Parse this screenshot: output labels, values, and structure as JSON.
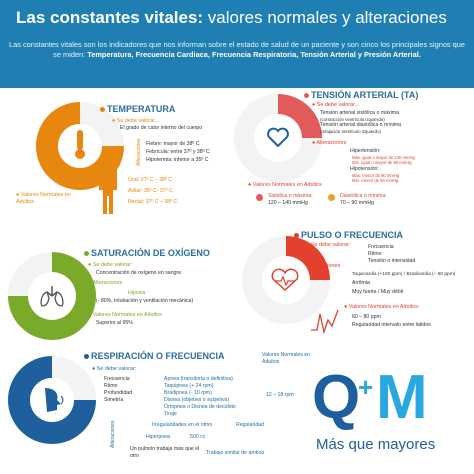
{
  "header": {
    "title_bold": "Las constantes vitales:",
    "title_rest": " valores normales y alteraciones",
    "intro": "Las constantes vitales son los indicadores que nos informan sobre el estado de salud de un paciente y son cinco los principales signos que se miden:",
    "intro_signs": "Temperatura, Frecuencia Cardiaca, Frecuencia Respiratoria, Tensión Arterial y Presión Arterial."
  },
  "temperatura": {
    "title": "TEMPERATURA",
    "valorar": "Se debe valorar...",
    "valorar_desc": "El grado de calor interno del cuerpo",
    "alteraciones_label": "Alteraciones",
    "alteraciones": [
      "Fiebre: mayor de 38º C",
      "Febrícula: entre 37º y 38º C",
      "Hipotermia: inferior a 35º C"
    ],
    "normales_label": "Valores Normales en Adultos",
    "normales": [
      "Oral: 37º C – 38º C",
      "Axilar: 36º C- 37º C",
      "Rectal: 37º C – 38º C"
    ]
  },
  "tension": {
    "title": "TENSIÓN ARTERIAL (TA)",
    "valorar": "Se debe valorar...",
    "items": [
      "Tensión arterial sistólica o máxima",
      "(contracción ventrículo izquierdo)",
      "Tensión arterial diastólica o mínima",
      "(relajación ventrículo izquierdo)"
    ],
    "alteraciones_label": "Alteraciones",
    "hiper": "Hipertensión:",
    "hiper_a": "Máx. igual o mayor de 140 mmHg",
    "hiper_b": "Mín. igual o mayor de 90 mmHg",
    "hipo": "Hipotensión:",
    "hipo_a": "Máx. menor de 90 mmHg",
    "hipo_b": "Mín. menor de 60 mmHg",
    "normales_label": "Valores Normales en Adultos",
    "sist_label": "Sistólica o máxima:",
    "sist_val": "120 – 140 mmHg",
    "diast_label": "Diastólica o mínima:",
    "diast_val": "70 – 90 mmHg"
  },
  "saturacion": {
    "title": "SATURACIÓN DE OXÍGENO",
    "valorar": "Se debe valorar:",
    "valorar_desc": "Concentración de oxígeno en sangre",
    "alteraciones_label": "Alteraciones",
    "hipoxia": "Hipoxia",
    "hipoxia_desc": "(- 80%, intubación y ventilación mecánica)",
    "normales_label": "Valores Normales en Adultos",
    "normales_val": "Superior al 95%"
  },
  "pulso": {
    "title": "PULSO O FRECUENCIA",
    "valorar": "Se debe valorar:",
    "valorar_items": [
      "Frecuencia",
      "Ritmo",
      "Tensión o intensidad"
    ],
    "alteraciones_label": "Alteraciones",
    "alt_items": [
      "Taquicardia (+100 ppm) / Bradicardia (– 60 ppm)",
      "Arritmia",
      "Muy fuerte / Muy débil"
    ],
    "normales_label": "Valores Normales en Adultos:",
    "normales": [
      "60 – 80 ppm",
      "Regularidad intervalo entre latidos"
    ]
  },
  "respiracion": {
    "title": "RESPIRACIÓN O FRECUENCIA",
    "valorar": "Se debe valorar:",
    "valorar_items": [
      "Frecuencia",
      "Ritmo",
      "Profundidad",
      "Simetría"
    ],
    "alt_items": [
      "Apnea (transitoria o definitiva)",
      "Taquipnea (+ 24 rpm)",
      "Bradipnea (- 10 rpm)",
      "Disnea (objetiva o subjetiva)",
      "Ortopnea o Disnea de decúbito",
      "Tiraje"
    ],
    "irregularidades": "Irregularidades en el ritmo",
    "regularidad": "Regularidad",
    "hiperpnea": "Hiperpnea",
    "hiperpnea_val": "500 cc",
    "pulmon": "Un pulmón trabaja más que el otro",
    "trabajo": "Trabajo similar de ambos",
    "alteraciones_label": "Alteraciones",
    "normales_label": "Valores Normales en Adultos",
    "normales_val": "12 – 18 rpm"
  },
  "brand": {
    "logo": "Q+M",
    "name": "Más que mayores"
  },
  "colors": {
    "header": "#1f7fb2",
    "temp": "#e8870f",
    "ta": "#e25a5a",
    "sat": "#7aaa2a",
    "pulse": "#e2412d",
    "resp": "#1f5f9e"
  }
}
